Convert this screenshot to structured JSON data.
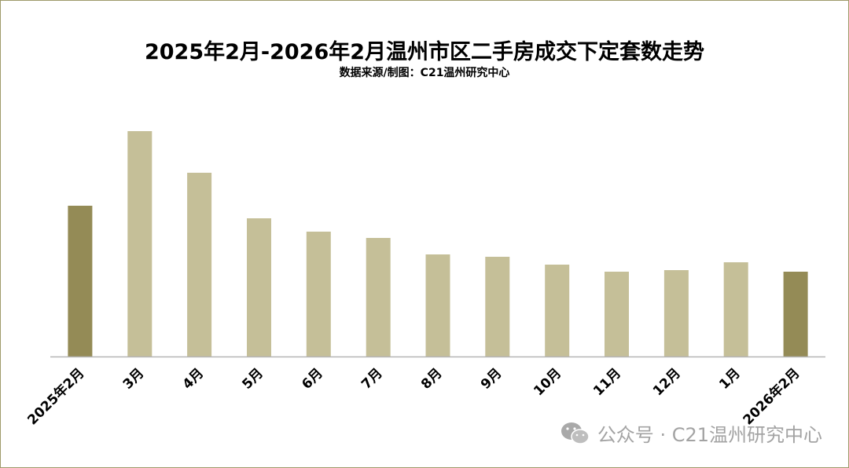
{
  "chart_data": {
    "type": "bar",
    "title": "2025年2月-2026年2月温州市区二手房成交下定套数走势",
    "subtitle": "数据来源/制图：C21温州研究中心",
    "categories": [
      "2025年2月",
      "3月",
      "4月",
      "5月",
      "6月",
      "7月",
      "8月",
      "9月",
      "10月",
      "11月",
      "12月",
      "1月",
      "2026年2月"
    ],
    "values": [
      192,
      287,
      234,
      176,
      159,
      151,
      130,
      127,
      117,
      108,
      110,
      120,
      108
    ],
    "highlight_indices": [
      0,
      12
    ],
    "ylim": [
      0,
      300
    ],
    "grid": false,
    "legend": "none",
    "colors": {
      "bar": "#c5bf98",
      "highlight": "#948b56",
      "axis": "#b5b5b5"
    }
  },
  "watermark": {
    "icon": "wechat-icon",
    "text": "公众号 · C21温州研究中心"
  }
}
